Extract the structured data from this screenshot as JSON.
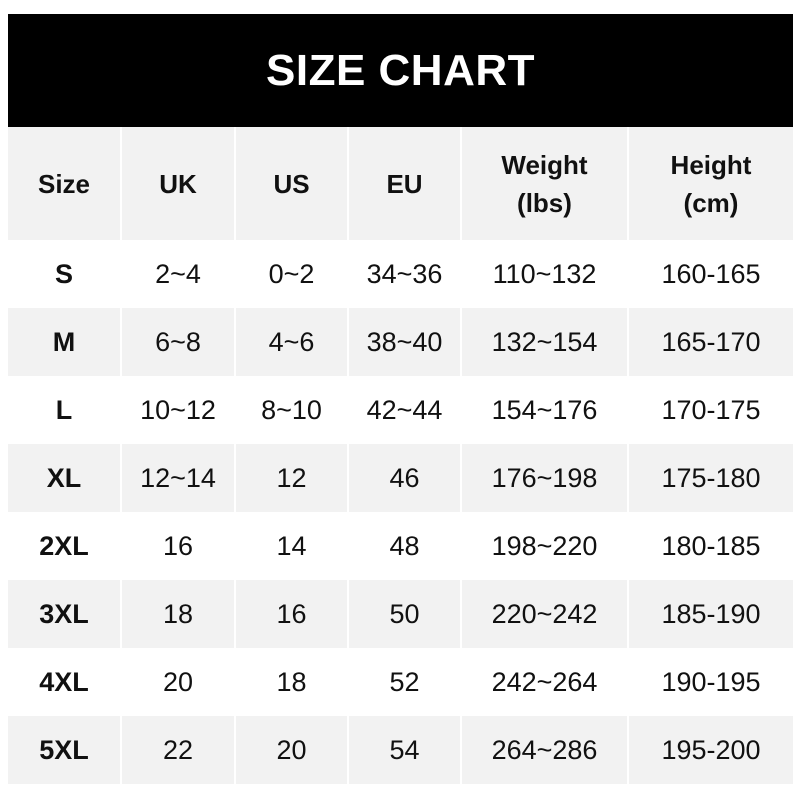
{
  "title": "SIZE CHART",
  "colors": {
    "title_bg": "#000000",
    "stripe": "#f2f2f2"
  },
  "table": {
    "headers": [
      "Size",
      "UK",
      "US",
      "EU",
      "Weight (lbs)",
      "Height (cm)"
    ],
    "header_lines": {
      "weight": [
        "Weight",
        "(lbs)"
      ],
      "height": [
        "Height",
        "(cm)"
      ]
    },
    "rows": [
      [
        "S",
        "2~4",
        "0~2",
        "34~36",
        "110~132",
        "160-165"
      ],
      [
        "M",
        "6~8",
        "4~6",
        "38~40",
        "132~154",
        "165-170"
      ],
      [
        "L",
        "10~12",
        "8~10",
        "42~44",
        "154~176",
        "170-175"
      ],
      [
        "XL",
        "12~14",
        "12",
        "46",
        "176~198",
        "175-180"
      ],
      [
        "2XL",
        "16",
        "14",
        "48",
        "198~220",
        "180-185"
      ],
      [
        "3XL",
        "18",
        "16",
        "50",
        "220~242",
        "185-190"
      ],
      [
        "4XL",
        "20",
        "18",
        "52",
        "242~264",
        "190-195"
      ],
      [
        "5XL",
        "22",
        "20",
        "54",
        "264~286",
        "195-200"
      ]
    ]
  }
}
